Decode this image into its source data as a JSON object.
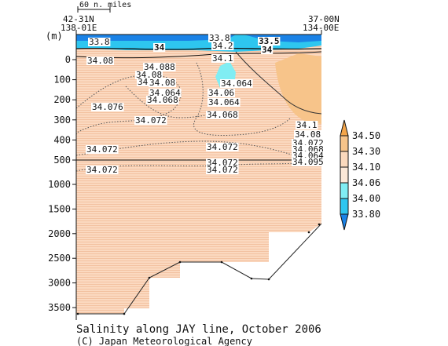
{
  "chart_data": {
    "type": "contour-section",
    "title": "Salinity along JAY line, October 2006",
    "credit": "(C) Japan Meteorological Agency",
    "y_unit_label": "(m)",
    "scale_bar_label": "60 n. miles",
    "stations": {
      "left": {
        "lat": "42-31N",
        "lon": "138-01E"
      },
      "right": {
        "lat": "37-00N",
        "lon": "134-00E"
      }
    },
    "y_ticks_upper": [
      0,
      100,
      200,
      300,
      400,
      500
    ],
    "y_ticks_lower": [
      1000,
      1500,
      2000,
      2500,
      3000,
      3500
    ],
    "y_break_depth": 500,
    "colorbar": {
      "levels": [
        "34.50",
        "34.30",
        "34.10",
        "34.06",
        "34.00",
        "33.80"
      ],
      "colors": [
        "#f4a54a",
        "#f7c48a",
        "#fad9bd",
        "#fce8d7",
        "#80edf3",
        "#2ec6ef",
        "#1a82e6"
      ]
    },
    "contour_labels": [
      "33.8",
      "34",
      "33.8",
      "34.2",
      "33.5",
      "34",
      "34.08",
      "34.088",
      "34.08",
      "34.076",
      "34.064",
      "34.1",
      "34.08",
      "34.064",
      "34.068",
      "34.076",
      "34.072",
      "34.06",
      "34.064",
      "34.068",
      "34.072",
      "34.072",
      "34.072",
      "34.072",
      "34.072",
      "34.1",
      "34.08",
      "34.072",
      "34.068",
      "34.064",
      "34.095"
    ],
    "bottom_depth_profile": [
      {
        "dist": 0.0,
        "depth": 3670
      },
      {
        "dist": 0.2,
        "depth": 3670
      },
      {
        "dist": 0.3,
        "depth": 3300
      },
      {
        "dist": 0.45,
        "depth": 2600
      },
      {
        "dist": 0.58,
        "depth": 2580
      },
      {
        "dist": 0.65,
        "depth": 2650
      },
      {
        "dist": 0.75,
        "depth": 3000
      },
      {
        "dist": 0.82,
        "depth": 3000
      },
      {
        "dist": 1.0,
        "depth": 1800
      }
    ]
  }
}
